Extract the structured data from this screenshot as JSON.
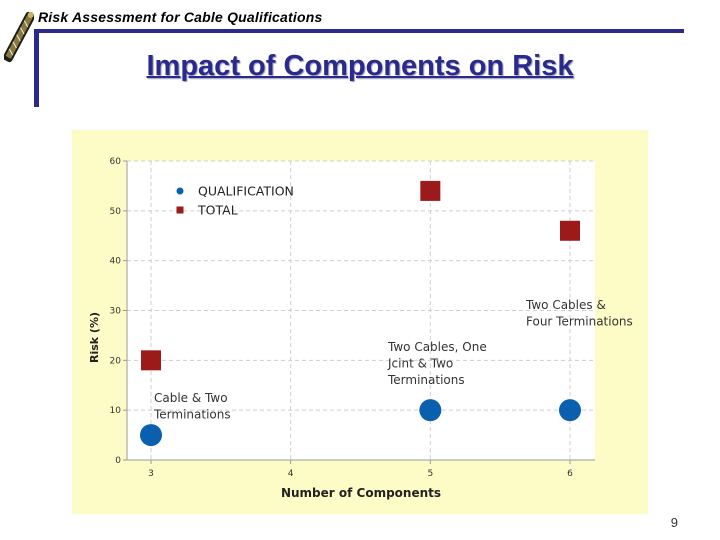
{
  "header": {
    "title": "Risk Assessment for Cable Qualifications"
  },
  "slide": {
    "title": "Impact of Components on Risk",
    "page_number": "9"
  },
  "colors": {
    "header_blue": "#2a2a8c",
    "panel_bg": "#fefcc6",
    "qualification": "#0b5faf",
    "total": "#9c1a1a"
  },
  "chart_data": {
    "type": "scatter",
    "xlabel": "Number of Components",
    "ylabel": "Risk (%)",
    "xlim": [
      3,
      6
    ],
    "ylim": [
      0,
      60
    ],
    "x_ticks": [
      "3",
      "4",
      "5",
      "6"
    ],
    "y_ticks": [
      "0",
      "10",
      "20",
      "30",
      "40",
      "50",
      "60"
    ],
    "grid": true,
    "legend_position": "top-left",
    "series": [
      {
        "name": "QUALIFICATION",
        "marker": "circle",
        "color": "#0b5faf",
        "points": [
          {
            "x": 3,
            "y": 5
          },
          {
            "x": 5,
            "y": 10
          },
          {
            "x": 6,
            "y": 10
          }
        ]
      },
      {
        "name": "TOTAL",
        "marker": "square",
        "color": "#9c1a1a",
        "points": [
          {
            "x": 3,
            "y": 20
          },
          {
            "x": 5,
            "y": 54
          },
          {
            "x": 6,
            "y": 46
          }
        ]
      }
    ],
    "annotations": [
      {
        "lines": [
          "Cable & Two",
          "Terminations"
        ]
      },
      {
        "lines": [
          "Two Cables, One",
          "Jcint & Two",
          "Terminations"
        ]
      },
      {
        "lines": [
          "Two Cables &",
          "Four Terminations"
        ]
      }
    ]
  }
}
